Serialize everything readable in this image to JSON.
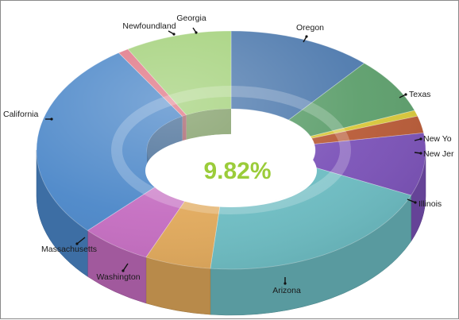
{
  "chart_data": {
    "type": "pie",
    "style": "3d-donut",
    "center_label": "9.82%",
    "center_label_color": "#9bcc3a",
    "slices": [
      {
        "label": "Oregon",
        "value": 12.0,
        "color": "#4d79ad"
      },
      {
        "label": "Texas",
        "value": 7.6,
        "color": "#5c9e6b"
      },
      {
        "label": "New York",
        "value": 0.8,
        "color": "#d9c83a"
      },
      {
        "label": "New Jersey",
        "value": 2.3,
        "color": "#b85a36"
      },
      {
        "label": "Illinois",
        "value": 8.5,
        "color": "#7b52b8"
      },
      {
        "label": "Arizona",
        "value": 20.5,
        "color": "#6cbcc2"
      },
      {
        "label": "Washington",
        "value": 5.5,
        "color": "#e0a85a"
      },
      {
        "label": "Massachusetts",
        "value": 6.0,
        "color": "#c46cc0"
      },
      {
        "label": "California",
        "value": 27.0,
        "color": "#4a86c8"
      },
      {
        "label": "Newfoundland",
        "value": 0.9,
        "color": "#e07585"
      },
      {
        "label": "Georgia",
        "value": 8.9,
        "color": "#a3d17a"
      }
    ],
    "visible_labels": [
      "Oregon",
      "Texas",
      "New Yo",
      "New Jer",
      "Illinois",
      "Arizona",
      "Washington",
      "Massachusetts",
      "California",
      "Newfoundland",
      "Georgia"
    ]
  }
}
